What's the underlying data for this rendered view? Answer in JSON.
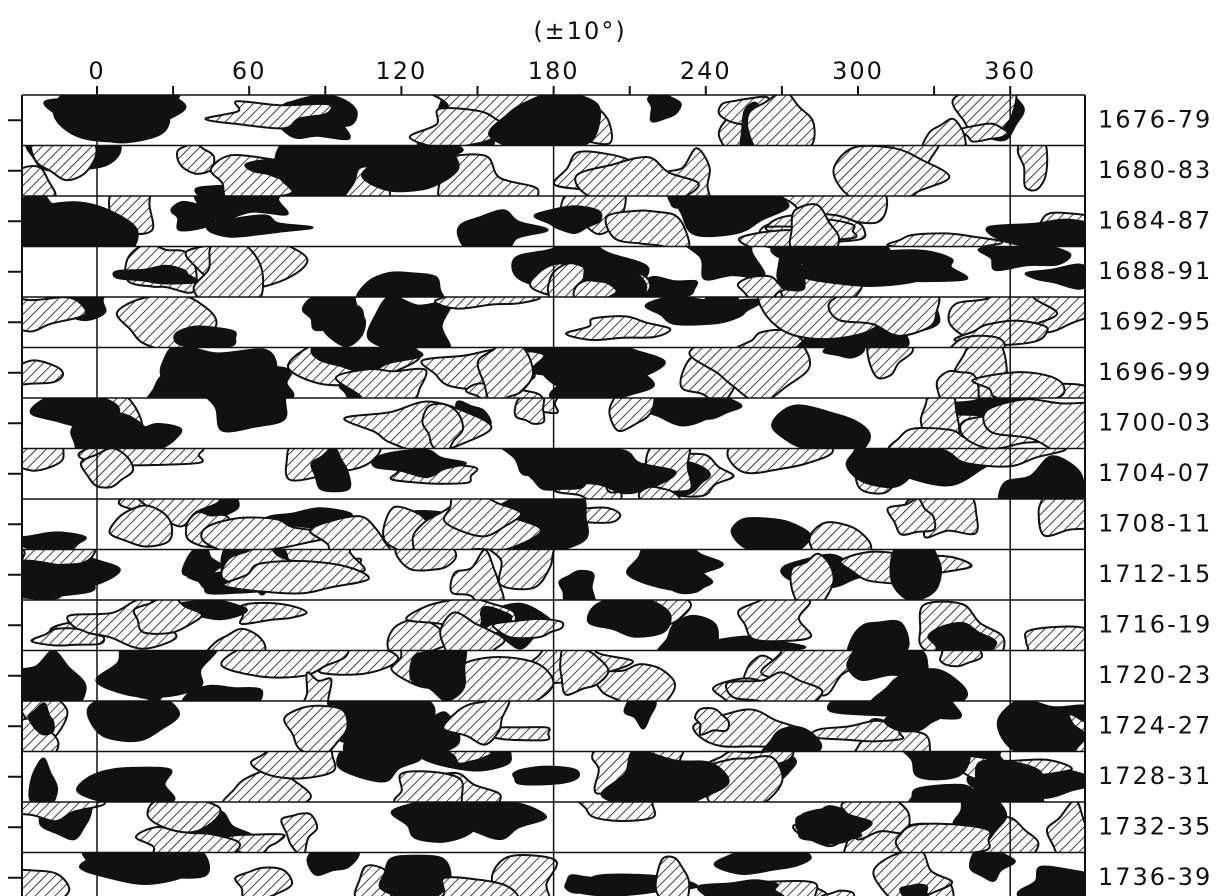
{
  "axis": {
    "title": "(±10°)",
    "ticks": [
      "0",
      "60",
      "120",
      "180",
      "240",
      "300",
      "360"
    ]
  },
  "rows": [
    "1676-79",
    "1680-83",
    "1684-87",
    "1688-91",
    "1692-95",
    "1696-99",
    "1700-03",
    "1704-07",
    "1708-11",
    "1712-15",
    "1716-19",
    "1720-23",
    "1724-27",
    "1728-31",
    "1732-35",
    "1736-39"
  ]
}
